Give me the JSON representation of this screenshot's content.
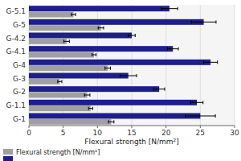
{
  "chart_data": {
    "type": "bar",
    "orientation": "horizontal",
    "xlabel": "Flexural strength [N/mm²]",
    "categories": [
      "G-5.1",
      "G-5",
      "G-4.2",
      "G-4.1",
      "G-4",
      "G-3",
      "G-2",
      "G-1.1",
      "G-1"
    ],
    "series": [
      {
        "color": "#1e1e8c",
        "values": [
          20.5,
          25.5,
          15.0,
          21.0,
          26.5,
          14.5,
          19.0,
          24.5,
          25.0
        ],
        "errors": [
          1.2,
          1.8,
          0.5,
          0.8,
          1.0,
          1.2,
          0.8,
          0.9,
          2.2
        ]
      },
      {
        "name": "Flexural strength [N/mm²]",
        "color": "#a0a0a0",
        "values": [
          6.5,
          10.5,
          5.5,
          9.5,
          11.5,
          4.5,
          8.5,
          9.0,
          12.0
        ],
        "errors": [
          0.3,
          0.4,
          0.4,
          0.3,
          0.4,
          0.3,
          0.4,
          0.3,
          0.4
        ]
      }
    ],
    "xlim": [
      0,
      30
    ],
    "xticks": [
      0,
      5,
      10,
      15,
      20,
      25,
      30
    ],
    "grid": true,
    "legend": "lower left"
  }
}
